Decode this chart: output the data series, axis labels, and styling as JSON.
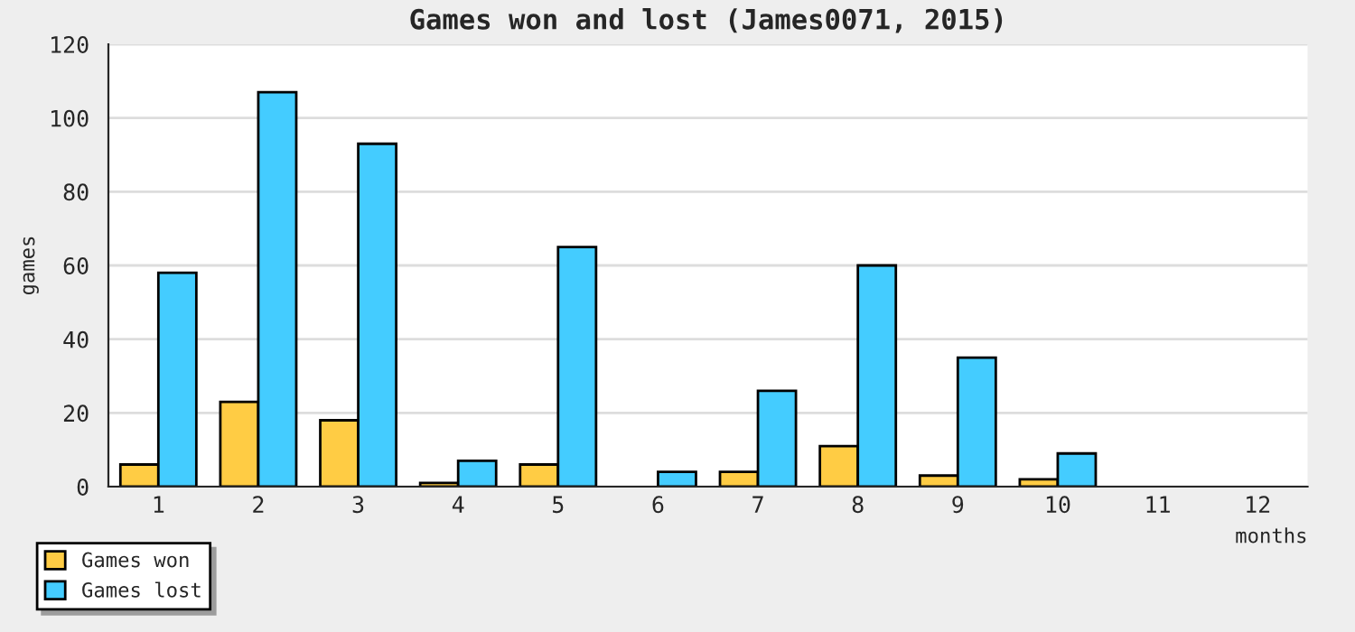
{
  "chart_data": {
    "type": "bar",
    "title": "Games won and lost (James0071, 2015)",
    "xlabel": "months",
    "ylabel": "games",
    "categories": [
      "1",
      "2",
      "3",
      "4",
      "5",
      "6",
      "7",
      "8",
      "9",
      "10",
      "11",
      "12"
    ],
    "series": [
      {
        "name": "Games won",
        "color": "#ffcc44",
        "values": [
          6,
          23,
          18,
          1,
          6,
          0,
          4,
          11,
          3,
          2,
          0,
          0
        ]
      },
      {
        "name": "Games lost",
        "color": "#44ccff",
        "values": [
          58,
          107,
          93,
          7,
          65,
          4,
          26,
          60,
          35,
          9,
          0,
          0
        ]
      }
    ],
    "ylim": [
      0,
      120
    ],
    "yticks": [
      0,
      20,
      40,
      60,
      80,
      100,
      120
    ],
    "grid": "y",
    "legend": "bottom left"
  }
}
